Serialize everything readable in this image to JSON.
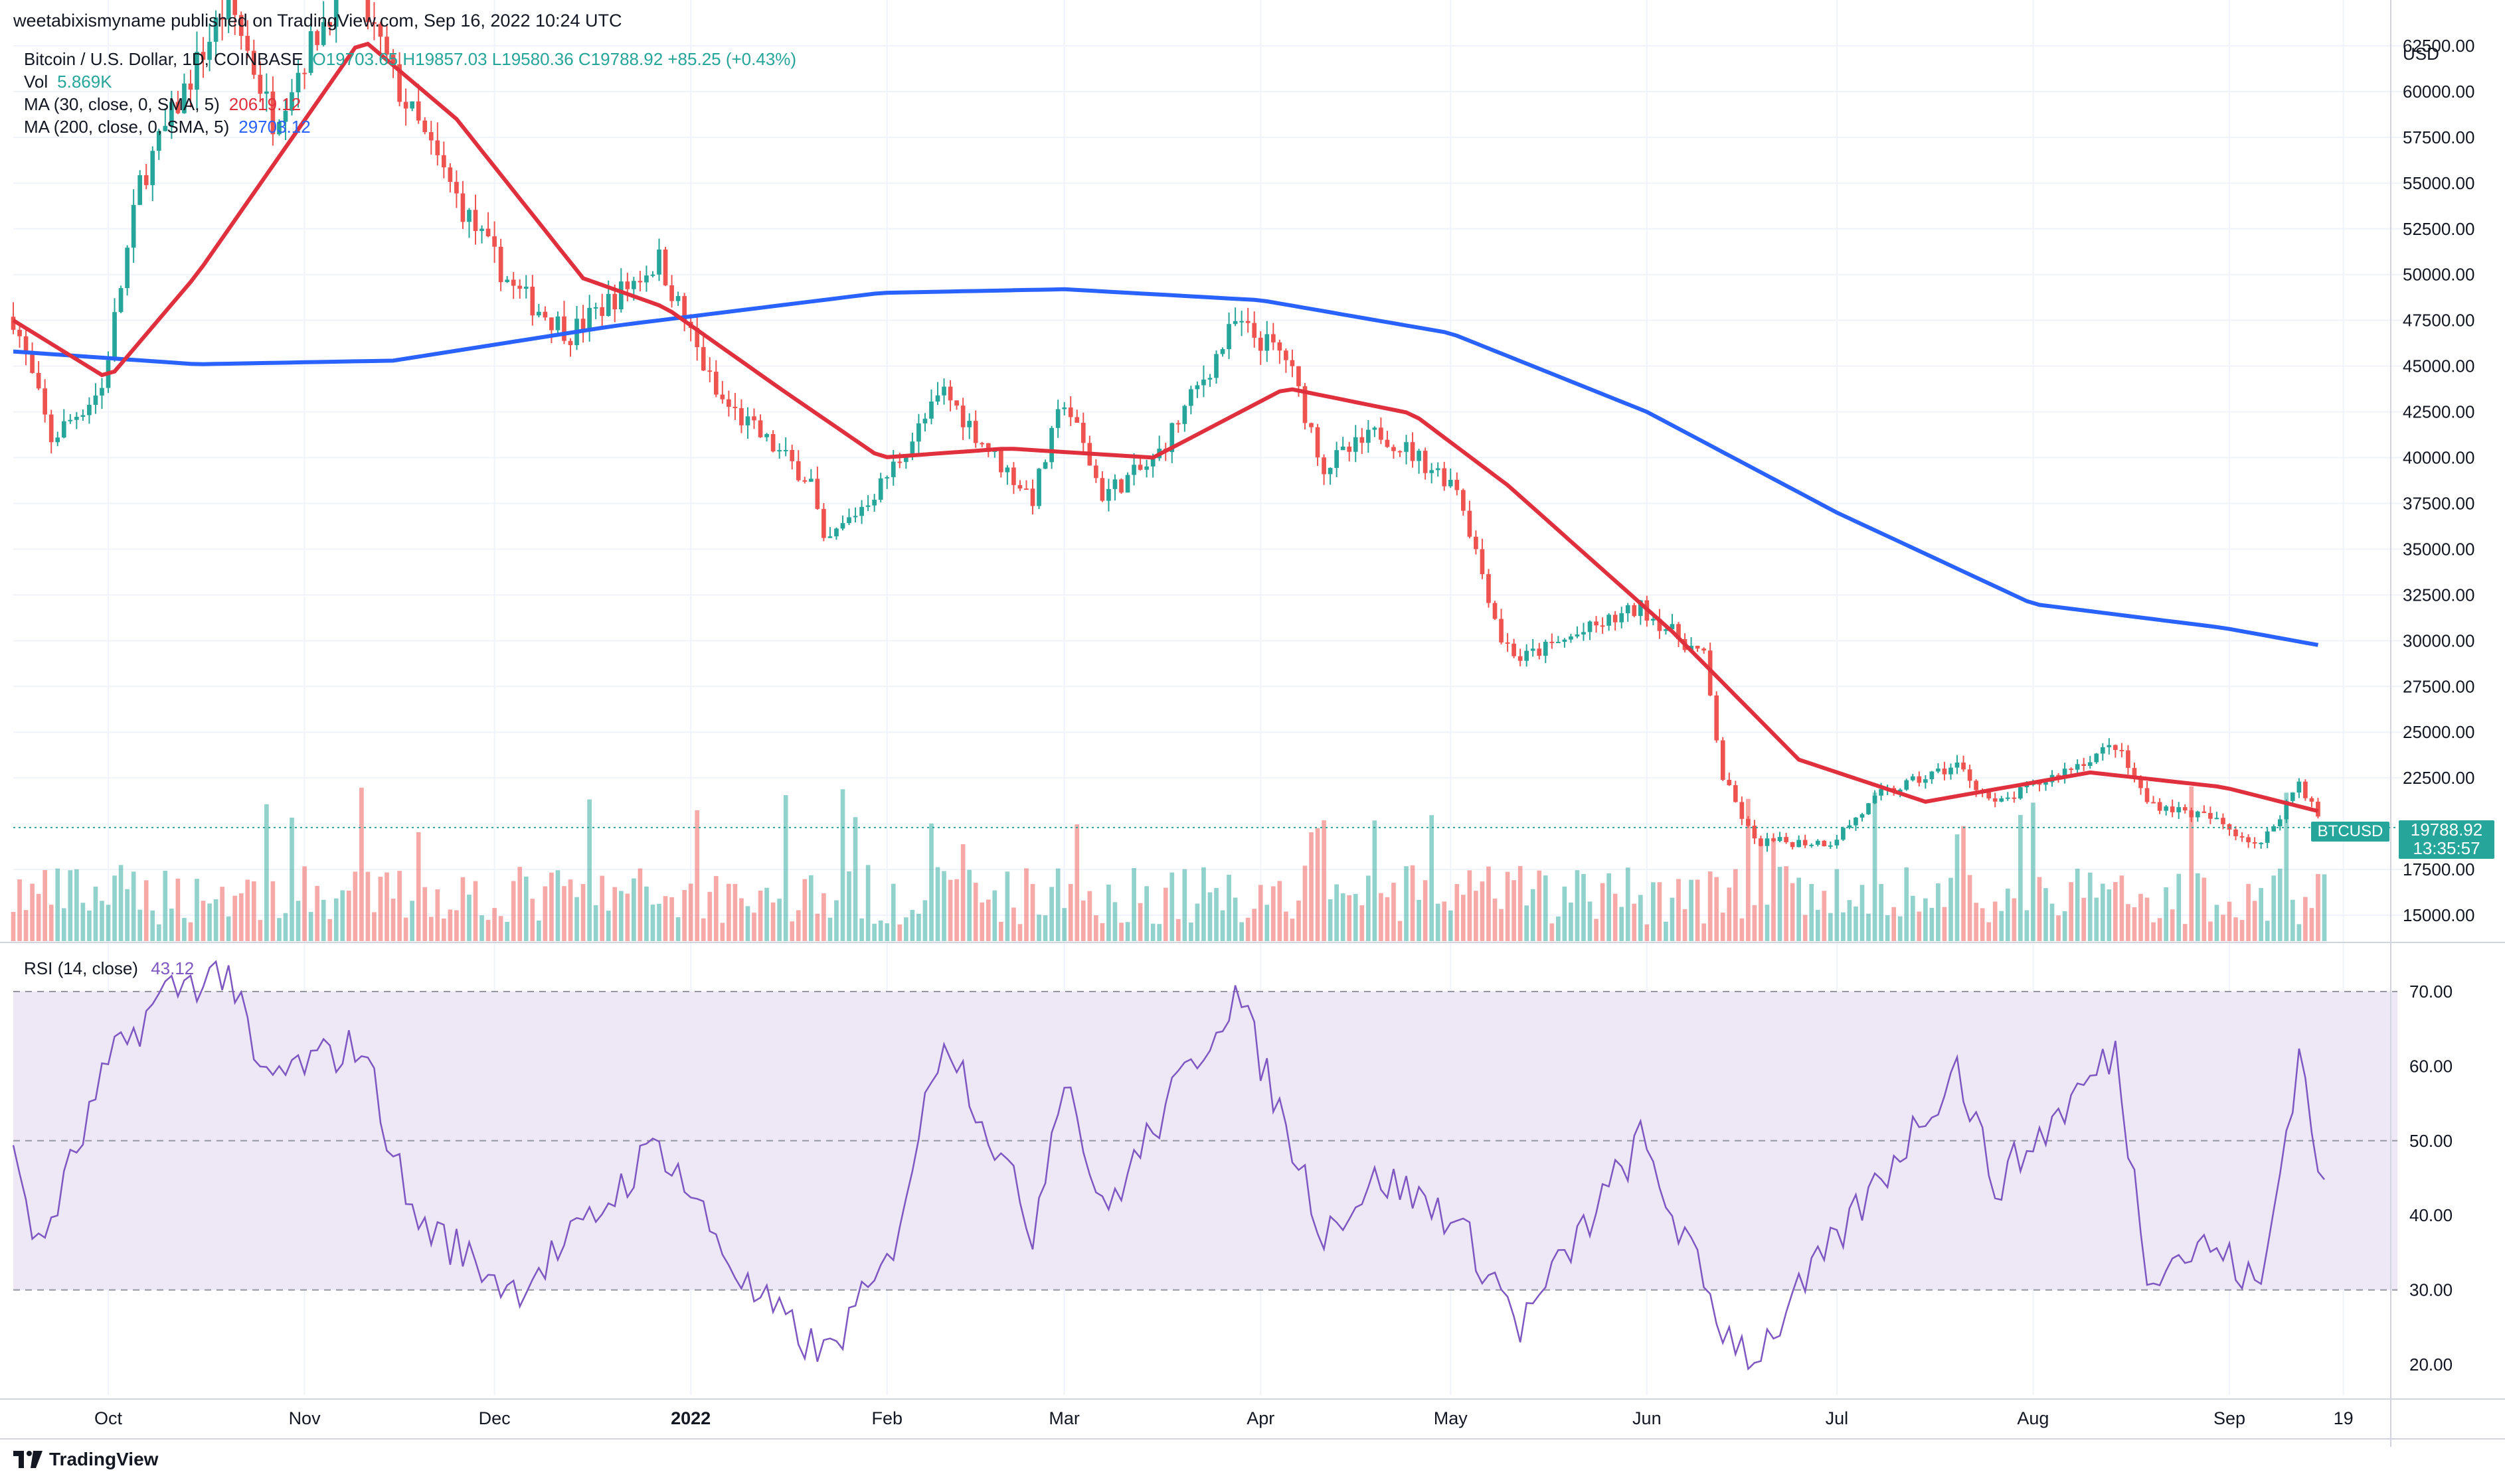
{
  "header": {
    "published_line": "weetabixismyname published on TradingView.com, Sep 16, 2022 10:24 UTC"
  },
  "legend": {
    "symbol": "Bitcoin / U.S. Dollar, 1D, COINBASE",
    "ohlc": "O19703.65 H19857.03 L19580.36 C19788.92 +85.25 (+0.43%)",
    "vol_label": "Vol",
    "vol_value": "5.869K",
    "ma30_label": "MA (30, close, 0, SMA, 5)",
    "ma30_value": "20619.12",
    "ma200_label": "MA (200, close, 0, SMA, 5)",
    "ma200_value": "29703.12"
  },
  "rsi_legend": {
    "label": "RSI (14, close)",
    "value": "43.12"
  },
  "price_axis": {
    "currency": "USD",
    "ticks": [
      "62500.00",
      "60000.00",
      "57500.00",
      "55000.00",
      "52500.00",
      "50000.00",
      "47500.00",
      "45000.00",
      "42500.00",
      "40000.00",
      "37500.00",
      "35000.00",
      "32500.00",
      "30000.00",
      "27500.00",
      "25000.00",
      "22500.00",
      "17500.00",
      "15000.00"
    ],
    "last_price": "19788.92",
    "countdown": "13:35:57",
    "symbol_tag": "BTCUSD"
  },
  "rsi_axis": {
    "ticks": [
      "70.00",
      "60.00",
      "50.00",
      "40.00",
      "30.00",
      "20.00"
    ]
  },
  "time_axis": {
    "labels": [
      "Oct",
      "Nov",
      "Dec",
      "2022",
      "Feb",
      "Mar",
      "Apr",
      "May",
      "Jun",
      "Jul",
      "Aug",
      "Sep",
      "19"
    ]
  },
  "footer": {
    "brand": "TradingView"
  },
  "colors": {
    "up": "#26a69a",
    "down": "#ef5350",
    "ma30": "#e0303e",
    "ma200": "#2962ff",
    "rsi": "#7e57c2",
    "rsi_band": "#ede7f6"
  },
  "chart_data": {
    "type": "candlestick",
    "title": "Bitcoin / U.S. Dollar, 1D, COINBASE",
    "ylim": [
      13500,
      65000
    ],
    "x_range": [
      "2021-09-16",
      "2022-09-16"
    ],
    "close_anchors": [
      [
        "2021-09-16",
        47700
      ],
      [
        "2021-09-22",
        41000
      ],
      [
        "2021-09-30",
        43800
      ],
      [
        "2021-10-06",
        55000
      ],
      [
        "2021-10-15",
        61500
      ],
      [
        "2021-10-20",
        65000
      ],
      [
        "2021-10-27",
        58500
      ],
      [
        "2021-11-08",
        66500
      ],
      [
        "2021-11-16",
        60000
      ],
      [
        "2021-11-26",
        53600
      ],
      [
        "2021-12-04",
        49200
      ],
      [
        "2021-12-13",
        46800
      ],
      [
        "2021-12-27",
        50800
      ],
      [
        "2022-01-05",
        43400
      ],
      [
        "2022-01-10",
        41800
      ],
      [
        "2022-01-20",
        38700
      ],
      [
        "2022-01-22",
        35100
      ],
      [
        "2022-01-31",
        38500
      ],
      [
        "2022-02-10",
        43600
      ],
      [
        "2022-02-18",
        40000
      ],
      [
        "2022-02-24",
        37800
      ],
      [
        "2022-03-01",
        43200
      ],
      [
        "2022-03-07",
        38000
      ],
      [
        "2022-03-15",
        39700
      ],
      [
        "2022-03-28",
        47300
      ],
      [
        "2022-04-05",
        45500
      ],
      [
        "2022-04-11",
        39500
      ],
      [
        "2022-04-20",
        41400
      ],
      [
        "2022-05-02",
        38500
      ],
      [
        "2022-05-09",
        30100
      ],
      [
        "2022-05-12",
        29000
      ],
      [
        "2022-05-31",
        31800
      ],
      [
        "2022-06-10",
        29100
      ],
      [
        "2022-06-13",
        22500
      ],
      [
        "2022-06-18",
        19000
      ],
      [
        "2022-06-30",
        19000
      ],
      [
        "2022-07-08",
        21600
      ],
      [
        "2022-07-20",
        23200
      ],
      [
        "2022-07-26",
        21000
      ],
      [
        "2022-08-14",
        24300
      ],
      [
        "2022-08-19",
        21200
      ],
      [
        "2022-08-29",
        20300
      ],
      [
        "2022-09-06",
        18800
      ],
      [
        "2022-09-12",
        22300
      ],
      [
        "2022-09-16",
        19788
      ]
    ],
    "ma30_anchors": [
      [
        "2021-09-16",
        47500
      ],
      [
        "2021-10-01",
        44300
      ],
      [
        "2021-10-15",
        50000
      ],
      [
        "2021-11-10",
        62900
      ],
      [
        "2021-11-25",
        58500
      ],
      [
        "2021-12-15",
        49800
      ],
      [
        "2021-12-28",
        48200
      ],
      [
        "2022-01-15",
        43800
      ],
      [
        "2022-01-31",
        40000
      ],
      [
        "2022-02-20",
        40500
      ],
      [
        "2022-03-15",
        40000
      ],
      [
        "2022-04-05",
        43800
      ],
      [
        "2022-04-25",
        42400
      ],
      [
        "2022-05-10",
        38500
      ],
      [
        "2022-06-05",
        30500
      ],
      [
        "2022-06-25",
        23500
      ],
      [
        "2022-07-15",
        21200
      ],
      [
        "2022-08-10",
        22800
      ],
      [
        "2022-08-31",
        22000
      ],
      [
        "2022-09-16",
        20600
      ]
    ],
    "ma200_anchors": [
      [
        "2021-09-16",
        45800
      ],
      [
        "2021-10-15",
        45100
      ],
      [
        "2021-11-15",
        45300
      ],
      [
        "2021-12-20",
        47200
      ],
      [
        "2022-01-31",
        49000
      ],
      [
        "2022-03-01",
        49200
      ],
      [
        "2022-04-01",
        48600
      ],
      [
        "2022-05-01",
        46800
      ],
      [
        "2022-06-01",
        42500
      ],
      [
        "2022-07-01",
        37000
      ],
      [
        "2022-08-01",
        32000
      ],
      [
        "2022-08-31",
        30700
      ],
      [
        "2022-09-16",
        29703
      ]
    ],
    "rsi_anchors": [
      [
        "2021-09-16",
        50
      ],
      [
        "2021-09-20",
        35
      ],
      [
        "2021-10-01",
        60
      ],
      [
        "2021-10-10",
        70
      ],
      [
        "2021-10-20",
        73
      ],
      [
        "2021-10-25",
        58
      ],
      [
        "2021-11-10",
        63
      ],
      [
        "2021-11-18",
        40
      ],
      [
        "2021-12-04",
        30
      ],
      [
        "2021-12-15",
        38
      ],
      [
        "2021-12-27",
        50
      ],
      [
        "2022-01-10",
        30
      ],
      [
        "2022-01-22",
        21
      ],
      [
        "2022-02-01",
        33
      ],
      [
        "2022-02-10",
        65
      ],
      [
        "2022-02-24",
        38
      ],
      [
        "2022-03-01",
        60
      ],
      [
        "2022-03-07",
        40
      ],
      [
        "2022-03-28",
        70
      ],
      [
        "2022-04-11",
        38
      ],
      [
        "2022-04-20",
        45
      ],
      [
        "2022-05-01",
        40
      ],
      [
        "2022-05-09",
        30
      ],
      [
        "2022-05-12",
        25
      ],
      [
        "2022-05-31",
        50
      ],
      [
        "2022-06-13",
        25
      ],
      [
        "2022-06-18",
        21
      ],
      [
        "2022-07-08",
        45
      ],
      [
        "2022-07-20",
        60
      ],
      [
        "2022-07-26",
        44
      ],
      [
        "2022-08-14",
        62
      ],
      [
        "2022-08-19",
        33
      ],
      [
        "2022-08-29",
        36
      ],
      [
        "2022-09-06",
        30
      ],
      [
        "2022-09-12",
        62
      ],
      [
        "2022-09-16",
        43
      ]
    ]
  }
}
